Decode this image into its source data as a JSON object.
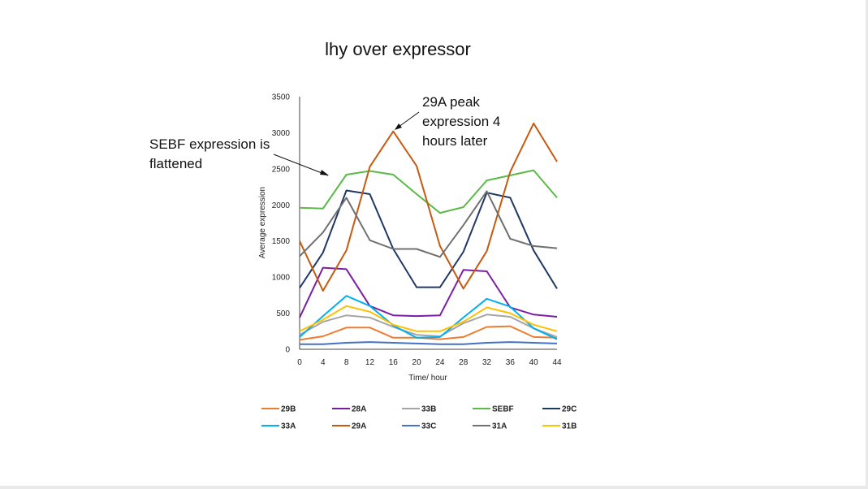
{
  "chart_data": {
    "type": "line",
    "title": "lhy over expressor",
    "xlabel": "Time/ hour",
    "ylabel": "Average  expression",
    "x": [
      0,
      4,
      8,
      12,
      16,
      20,
      24,
      28,
      32,
      36,
      40,
      44
    ],
    "ylim": [
      0,
      3500
    ],
    "yticks": [
      0,
      500,
      1000,
      1500,
      2000,
      2500,
      3000,
      3500
    ],
    "grid": false,
    "legend_position": "bottom",
    "series": [
      {
        "name": "29B",
        "color": "#ED7D31",
        "values": [
          130,
          180,
          300,
          300,
          160,
          160,
          140,
          170,
          310,
          320,
          170,
          160
        ]
      },
      {
        "name": "28A",
        "color": "#7B1FA2",
        "values": [
          440,
          1130,
          1110,
          600,
          470,
          460,
          470,
          1100,
          1080,
          580,
          480,
          450
        ]
      },
      {
        "name": "33B",
        "color": "#A5A5A5",
        "values": [
          200,
          380,
          470,
          440,
          310,
          200,
          180,
          360,
          480,
          450,
          290,
          170
        ]
      },
      {
        "name": "SEBF",
        "color": "#5BB947",
        "values": [
          1960,
          1950,
          2420,
          2470,
          2420,
          2150,
          1890,
          1970,
          2340,
          2410,
          2480,
          2100
        ]
      },
      {
        "name": "29C",
        "color": "#203864",
        "values": [
          850,
          1340,
          2200,
          2150,
          1390,
          860,
          860,
          1350,
          2170,
          2100,
          1370,
          840
        ]
      },
      {
        "name": "33A",
        "color": "#00B0F0",
        "values": [
          170,
          460,
          740,
          600,
          330,
          160,
          170,
          440,
          700,
          590,
          290,
          140
        ]
      },
      {
        "name": "29A",
        "color": "#C55A11",
        "values": [
          1500,
          810,
          1370,
          2530,
          3020,
          2540,
          1430,
          840,
          1360,
          2460,
          3130,
          2600
        ]
      },
      {
        "name": "33C",
        "color": "#4472C4",
        "values": [
          70,
          70,
          90,
          100,
          90,
          80,
          70,
          70,
          90,
          100,
          90,
          80
        ]
      },
      {
        "name": "31A",
        "color": "#707070",
        "values": [
          1290,
          1620,
          2100,
          1510,
          1390,
          1390,
          1280,
          1720,
          2190,
          1530,
          1430,
          1400
        ]
      },
      {
        "name": "31B",
        "color": "#FFC000",
        "values": [
          250,
          410,
          600,
          520,
          340,
          250,
          250,
          380,
          580,
          500,
          340,
          250
        ]
      }
    ],
    "annotations": [
      {
        "lines": [
          "SEBF expression is",
          "flattened"
        ]
      },
      {
        "lines": [
          "29A peak",
          "expression 4",
          "hours later"
        ]
      }
    ]
  }
}
